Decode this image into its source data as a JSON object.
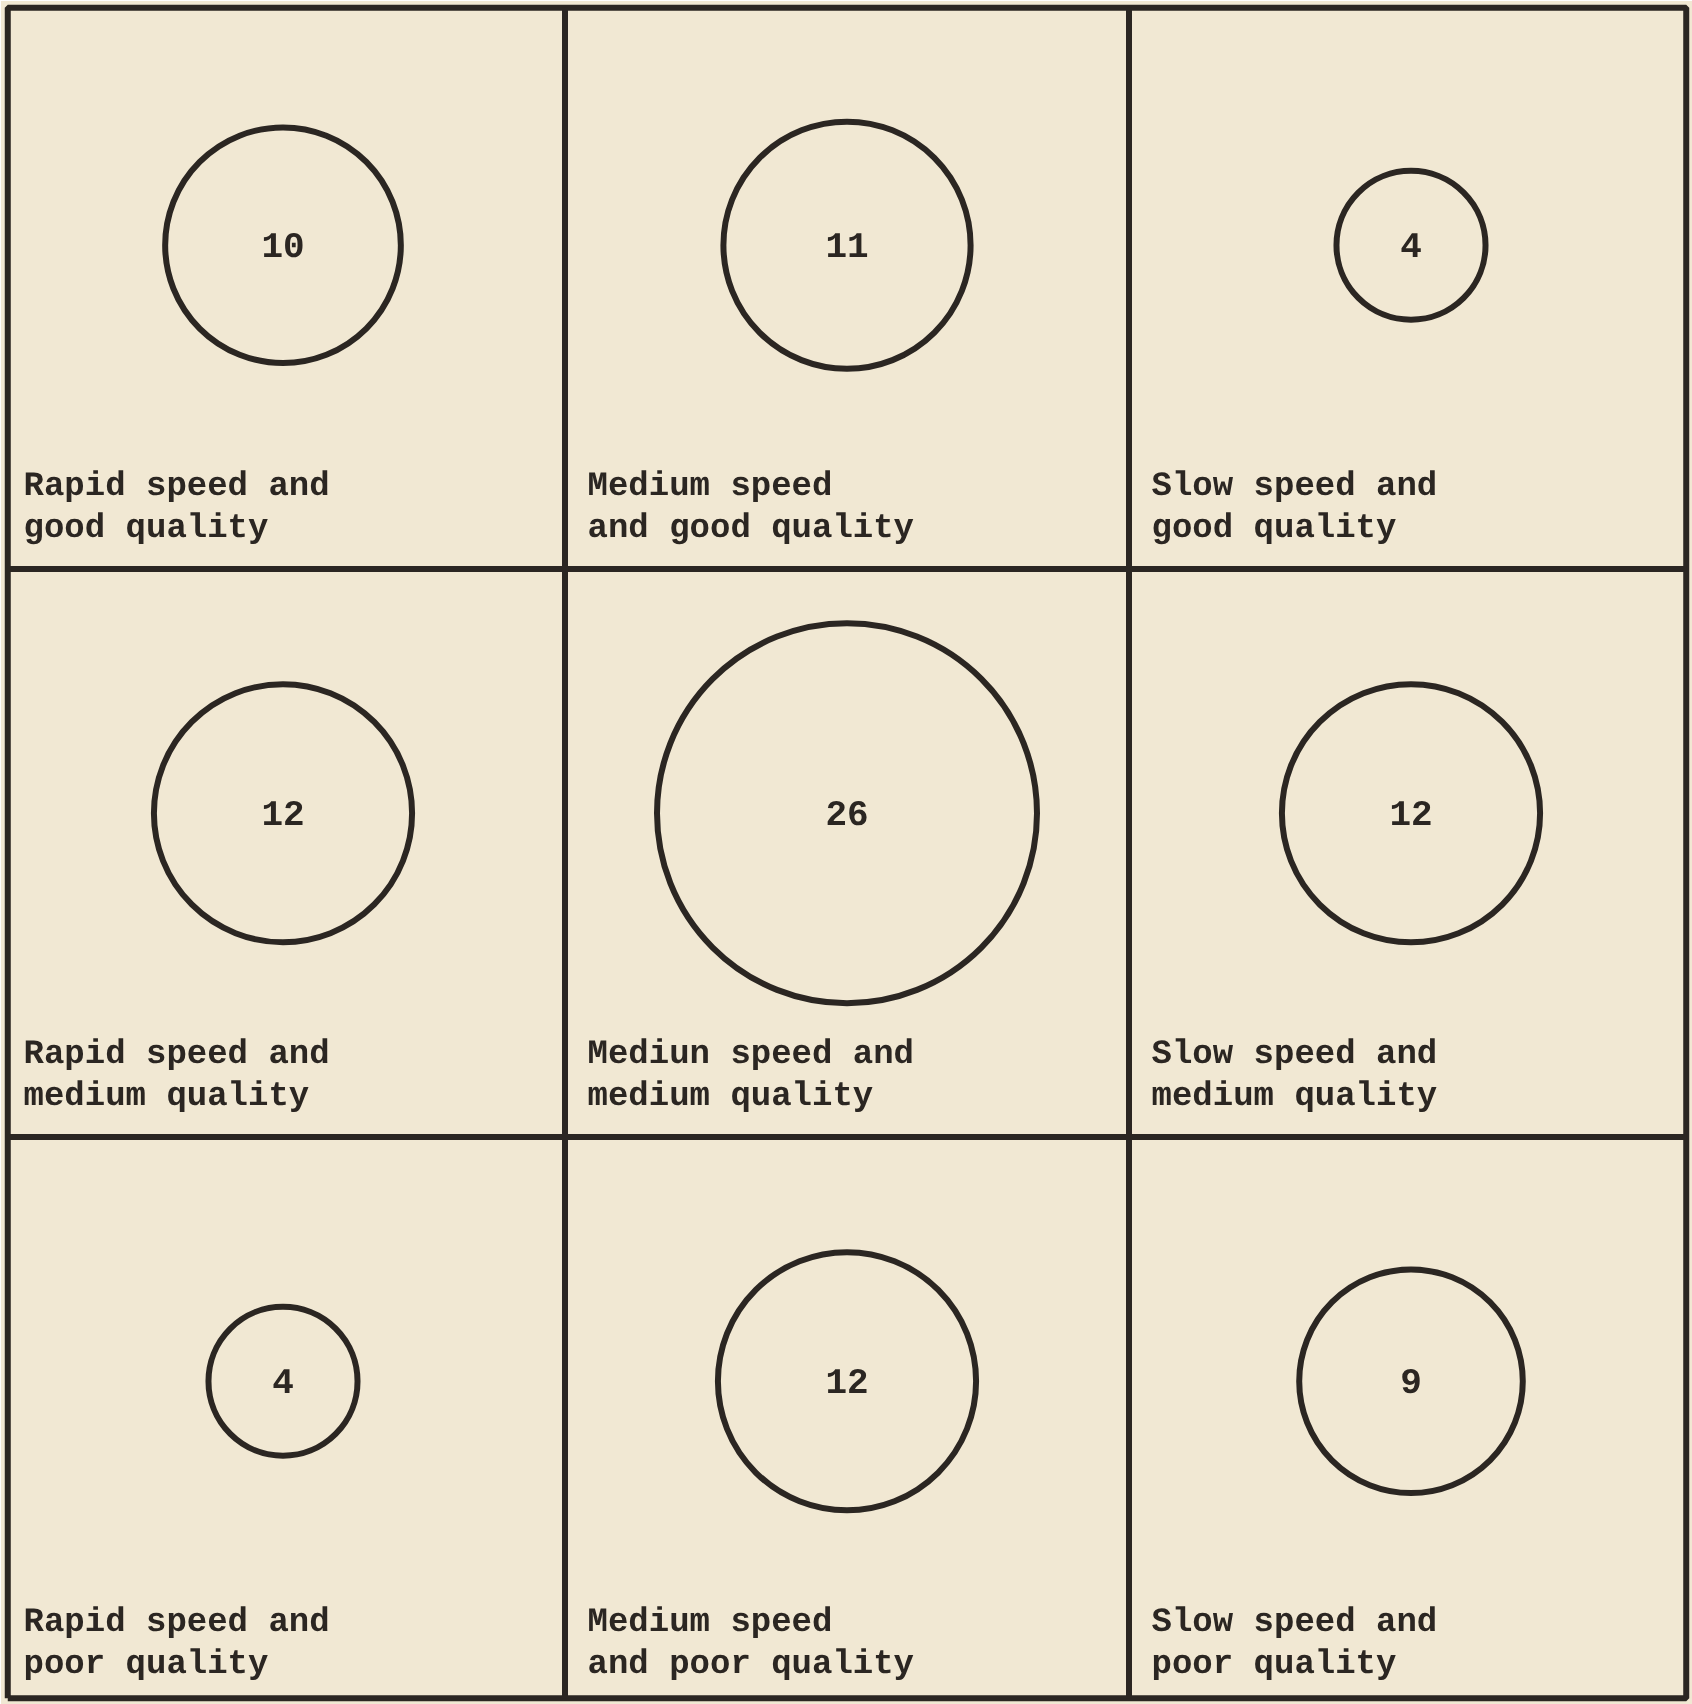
{
  "chart_data": {
    "type": "other",
    "color": "#2b2622",
    "data_labels": true,
    "categories": [
      "Rapid speed and\ngood quality",
      "Medium speed\nand good quality",
      "Slow speed and\ngood quality",
      "Rapid speed and\nmedium quality",
      "Mediun speed and\nmedium quality",
      "Slow speed and\nmedium quality",
      "Rapid speed and\npoor quality",
      "Medium speed\nand poor quality",
      "Slow speed and\npoor quality"
    ],
    "values": [
      10,
      11,
      4,
      12,
      26,
      12,
      4,
      12,
      9
    ]
  }
}
